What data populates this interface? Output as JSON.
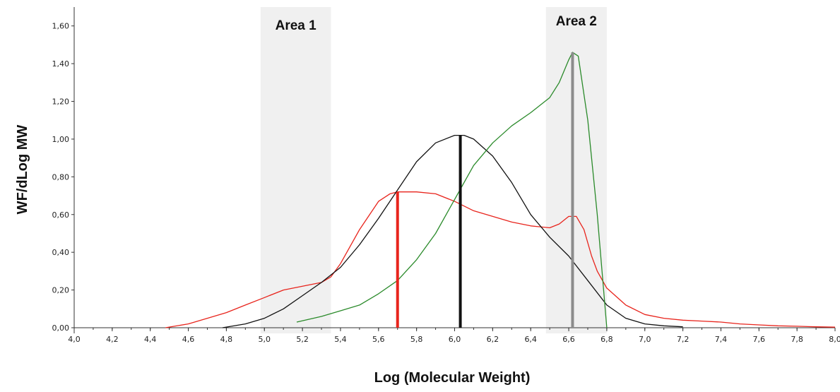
{
  "chart_data": {
    "type": "line",
    "xlabel": "Log (Molecular Weight)",
    "ylabel": "WF/dLog MW",
    "xlim": [
      4.0,
      8.0
    ],
    "ylim": [
      -0.03,
      1.7
    ],
    "x_ticks": [
      "4,0",
      "4,2",
      "4,4",
      "4,6",
      "4,8",
      "5,0",
      "5,2",
      "5,4",
      "5,6",
      "5,8",
      "6,0",
      "6,2",
      "6,4",
      "6,6",
      "6,8",
      "7,0",
      "7,2",
      "7,4",
      "7,6",
      "7,8",
      "8,0"
    ],
    "y_ticks": [
      "0,00",
      "0,20",
      "0,40",
      "0,60",
      "0,80",
      "1,00",
      "1,20",
      "1,40",
      "1,60"
    ],
    "grid": false,
    "shaded_regions": [
      {
        "label": "Area 1",
        "x_start": 4.98,
        "x_end": 5.35,
        "color": "#f0f0f0"
      },
      {
        "label": "Area 2",
        "x_start": 6.48,
        "x_end": 6.8,
        "color": "#f0f0f0"
      }
    ],
    "series": [
      {
        "color": "#e8241c",
        "x": [
          4.48,
          4.6,
          4.7,
          4.8,
          4.9,
          5.0,
          5.1,
          5.2,
          5.3,
          5.35,
          5.4,
          5.5,
          5.6,
          5.66,
          5.7,
          5.8,
          5.9,
          6.0,
          6.1,
          6.2,
          6.3,
          6.4,
          6.5,
          6.55,
          6.6,
          6.64,
          6.68,
          6.72,
          6.75,
          6.8,
          6.9,
          7.0,
          7.1,
          7.2,
          7.3,
          7.4,
          7.5,
          7.6,
          7.7,
          7.8,
          7.9,
          8.0
        ],
        "y": [
          0.0,
          0.02,
          0.05,
          0.08,
          0.12,
          0.16,
          0.2,
          0.22,
          0.24,
          0.27,
          0.34,
          0.52,
          0.67,
          0.71,
          0.72,
          0.72,
          0.71,
          0.67,
          0.62,
          0.59,
          0.56,
          0.54,
          0.53,
          0.55,
          0.59,
          0.59,
          0.52,
          0.38,
          0.3,
          0.21,
          0.12,
          0.07,
          0.05,
          0.04,
          0.035,
          0.03,
          0.02,
          0.015,
          0.01,
          0.008,
          0.005,
          0.003
        ]
      },
      {
        "color": "#111111",
        "x": [
          4.78,
          4.9,
          5.0,
          5.1,
          5.2,
          5.3,
          5.4,
          5.5,
          5.6,
          5.7,
          5.8,
          5.9,
          6.0,
          6.05,
          6.1,
          6.2,
          6.3,
          6.4,
          6.5,
          6.6,
          6.7,
          6.8,
          6.9,
          7.0,
          7.1,
          7.2
        ],
        "y": [
          0.0,
          0.02,
          0.05,
          0.1,
          0.17,
          0.24,
          0.32,
          0.44,
          0.58,
          0.73,
          0.88,
          0.98,
          1.02,
          1.02,
          1.0,
          0.91,
          0.77,
          0.6,
          0.48,
          0.38,
          0.25,
          0.12,
          0.05,
          0.02,
          0.01,
          0.005
        ]
      },
      {
        "color": "#2a8a2a",
        "x": [
          5.17,
          5.3,
          5.4,
          5.5,
          5.6,
          5.7,
          5.8,
          5.9,
          6.0,
          6.1,
          6.2,
          6.3,
          6.4,
          6.5,
          6.55,
          6.6,
          6.62,
          6.65,
          6.7,
          6.75,
          6.8
        ],
        "y": [
          0.03,
          0.06,
          0.09,
          0.12,
          0.18,
          0.25,
          0.36,
          0.5,
          0.68,
          0.86,
          0.98,
          1.07,
          1.14,
          1.22,
          1.3,
          1.42,
          1.46,
          1.44,
          1.1,
          0.6,
          0.0
        ]
      }
    ],
    "peak_markers": [
      {
        "x": 5.7,
        "y": 0.72,
        "color": "#e8241c"
      },
      {
        "x": 6.03,
        "y": 1.02,
        "color": "#111111"
      },
      {
        "x": 6.62,
        "y": 1.46,
        "color": "#8c8c8c"
      }
    ]
  }
}
